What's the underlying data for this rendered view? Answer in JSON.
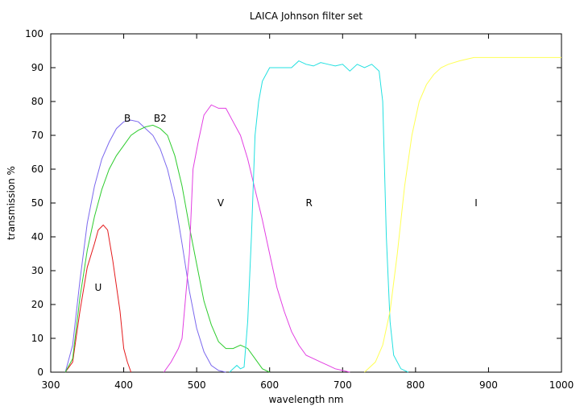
{
  "chart_data": {
    "type": "line",
    "title": "LAICA Johnson filter set",
    "xlabel": "wavelength nm",
    "ylabel": "transmission %",
    "xlim": [
      300,
      1000
    ],
    "ylim": [
      0,
      100
    ],
    "xticks": [
      300,
      400,
      500,
      600,
      700,
      800,
      900,
      1000
    ],
    "yticks": [
      0,
      10,
      20,
      30,
      40,
      50,
      60,
      70,
      80,
      90,
      100
    ],
    "grid": false,
    "legend": "none",
    "series": [
      {
        "name": "U",
        "color": "#e41a1c",
        "label_at": [
          365,
          25
        ],
        "points": [
          [
            320,
            0
          ],
          [
            330,
            3
          ],
          [
            340,
            18
          ],
          [
            350,
            31
          ],
          [
            360,
            38
          ],
          [
            365,
            42
          ],
          [
            372,
            43.5
          ],
          [
            378,
            42
          ],
          [
            385,
            33
          ],
          [
            395,
            18
          ],
          [
            400,
            7
          ],
          [
            405,
            3
          ],
          [
            410,
            0
          ]
        ]
      },
      {
        "name": "B",
        "color": "#7b68ee",
        "label_at": [
          405,
          75
        ],
        "points": [
          [
            320,
            0
          ],
          [
            330,
            8
          ],
          [
            340,
            27
          ],
          [
            350,
            44
          ],
          [
            360,
            55
          ],
          [
            370,
            63
          ],
          [
            380,
            68
          ],
          [
            390,
            72
          ],
          [
            400,
            74
          ],
          [
            410,
            74.5
          ],
          [
            420,
            74
          ],
          [
            430,
            72
          ],
          [
            440,
            70
          ],
          [
            450,
            66
          ],
          [
            460,
            60
          ],
          [
            470,
            51
          ],
          [
            480,
            38
          ],
          [
            490,
            24
          ],
          [
            500,
            13
          ],
          [
            510,
            6
          ],
          [
            520,
            2
          ],
          [
            530,
            0.5
          ],
          [
            540,
            0
          ]
        ]
      },
      {
        "name": "B2",
        "color": "#2ecc2e",
        "label_at": [
          450,
          75
        ],
        "points": [
          [
            320,
            0
          ],
          [
            330,
            4
          ],
          [
            340,
            22
          ],
          [
            350,
            36
          ],
          [
            360,
            46
          ],
          [
            370,
            54
          ],
          [
            380,
            60
          ],
          [
            390,
            64
          ],
          [
            400,
            67
          ],
          [
            410,
            70
          ],
          [
            420,
            71.5
          ],
          [
            430,
            72.5
          ],
          [
            440,
            73
          ],
          [
            450,
            72
          ],
          [
            460,
            70
          ],
          [
            470,
            64
          ],
          [
            480,
            55
          ],
          [
            490,
            43
          ],
          [
            500,
            32
          ],
          [
            510,
            21
          ],
          [
            520,
            14
          ],
          [
            530,
            9
          ],
          [
            540,
            7
          ],
          [
            550,
            7
          ],
          [
            560,
            8
          ],
          [
            570,
            7
          ],
          [
            580,
            4
          ],
          [
            590,
            1
          ],
          [
            600,
            0
          ]
        ]
      },
      {
        "name": "V",
        "color": "#e23fe2",
        "label_at": [
          533,
          50
        ],
        "points": [
          [
            455,
            0
          ],
          [
            465,
            3
          ],
          [
            475,
            7
          ],
          [
            480,
            10
          ],
          [
            490,
            35
          ],
          [
            495,
            60
          ],
          [
            502,
            68
          ],
          [
            510,
            76
          ],
          [
            520,
            79
          ],
          [
            530,
            78
          ],
          [
            540,
            78
          ],
          [
            550,
            74
          ],
          [
            560,
            70
          ],
          [
            570,
            63
          ],
          [
            580,
            54
          ],
          [
            590,
            45
          ],
          [
            600,
            35
          ],
          [
            610,
            25
          ],
          [
            620,
            18
          ],
          [
            630,
            12
          ],
          [
            640,
            8
          ],
          [
            650,
            5
          ],
          [
            660,
            4
          ],
          [
            670,
            3
          ],
          [
            680,
            2
          ],
          [
            690,
            1
          ],
          [
            700,
            0.5
          ],
          [
            710,
            0
          ]
        ]
      },
      {
        "name": "R",
        "color": "#22e0e0",
        "label_at": [
          654,
          50
        ],
        "points": [
          [
            545,
            0
          ],
          [
            550,
            1
          ],
          [
            555,
            2
          ],
          [
            560,
            1
          ],
          [
            565,
            1.5
          ],
          [
            570,
            15
          ],
          [
            575,
            40
          ],
          [
            580,
            70
          ],
          [
            585,
            80
          ],
          [
            590,
            86
          ],
          [
            600,
            90
          ],
          [
            610,
            90
          ],
          [
            620,
            90
          ],
          [
            630,
            90
          ],
          [
            640,
            92
          ],
          [
            650,
            91
          ],
          [
            660,
            90.5
          ],
          [
            670,
            91.5
          ],
          [
            680,
            91
          ],
          [
            690,
            90.5
          ],
          [
            700,
            91
          ],
          [
            710,
            89
          ],
          [
            720,
            91
          ],
          [
            730,
            90
          ],
          [
            740,
            91
          ],
          [
            750,
            89
          ],
          [
            755,
            80
          ],
          [
            760,
            40
          ],
          [
            765,
            15
          ],
          [
            770,
            5
          ],
          [
            780,
            1
          ],
          [
            790,
            0
          ]
        ]
      },
      {
        "name": "I",
        "color": "#ffff55",
        "label_at": [
          883,
          50
        ],
        "points": [
          [
            730,
            0
          ],
          [
            745,
            3
          ],
          [
            755,
            8
          ],
          [
            765,
            18
          ],
          [
            775,
            35
          ],
          [
            785,
            55
          ],
          [
            795,
            70
          ],
          [
            805,
            80
          ],
          [
            815,
            85
          ],
          [
            825,
            88
          ],
          [
            835,
            90
          ],
          [
            845,
            91
          ],
          [
            860,
            92
          ],
          [
            880,
            93
          ],
          [
            900,
            93
          ],
          [
            950,
            93
          ],
          [
            1000,
            93
          ]
        ]
      }
    ]
  }
}
